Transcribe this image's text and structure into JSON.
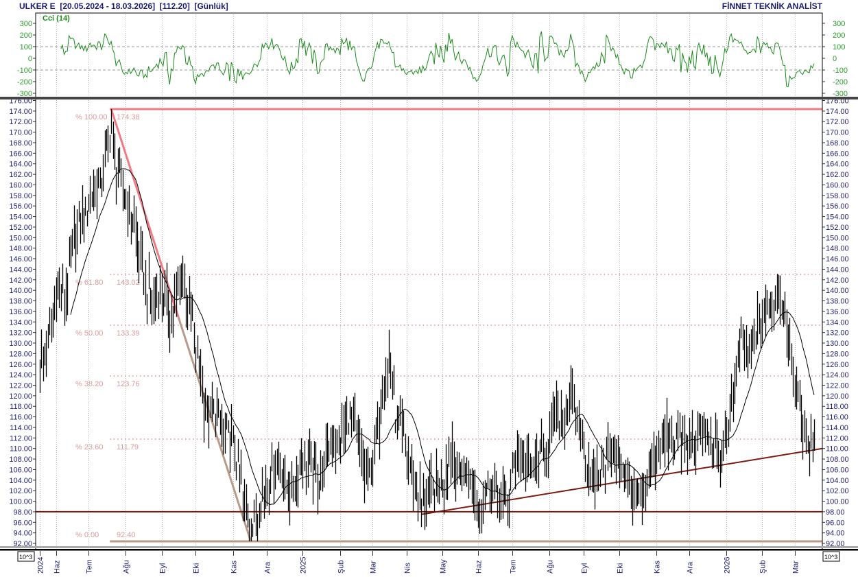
{
  "header": {
    "title": "ULKER E  [20.05.2024 - 18.03.2026]  [112.20]  [Günlük]",
    "brand": "FİNNET TEKNİK ANALİST"
  },
  "chart_data": [
    {
      "type": "line",
      "title": "Cci (14)",
      "ylim": [
        -300,
        300
      ],
      "yticks": [
        "300",
        "200",
        "100",
        "0",
        "-100",
        "-200",
        "-300"
      ],
      "reference_lines": [
        100,
        -100
      ],
      "color": "#1a8a1a",
      "grid": true
    },
    {
      "type": "bar",
      "ohlc_style": "high-low bars",
      "symbol": "ULKER E",
      "period": "Günlük",
      "start_date": "2024-05-20",
      "end_date": "2026-03-18",
      "last_price": 112.2,
      "ylim": [
        92,
        176
      ],
      "ytick_step": 2,
      "scale_badge": "10^3",
      "xticks": [
        "2024",
        "Haz",
        "Tem",
        "Ağu",
        "Eyl",
        "Eki",
        "Kas",
        "Ara",
        "2025",
        "Şub",
        "Mar",
        "Nis",
        "May",
        "Haz",
        "Tem",
        "Ağu",
        "Eyl",
        "Eki",
        "Kas",
        "Ara",
        "2026",
        "Şub",
        "Mar"
      ],
      "moving_average": {
        "color": "#000000"
      },
      "grid": true,
      "close_waypoints": [
        [
          "2024-05-20",
          126
        ],
        [
          "2024-05-27",
          130
        ],
        [
          "2024-06-03",
          140
        ],
        [
          "2024-06-10",
          138
        ],
        [
          "2024-06-14",
          145
        ],
        [
          "2024-06-21",
          152
        ],
        [
          "2024-06-28",
          155
        ],
        [
          "2024-07-03",
          158
        ],
        [
          "2024-07-10",
          160
        ],
        [
          "2024-07-15",
          165
        ],
        [
          "2024-07-19",
          172
        ],
        [
          "2024-07-25",
          162
        ],
        [
          "2024-07-31",
          158
        ],
        [
          "2024-08-05",
          155
        ],
        [
          "2024-08-12",
          148
        ],
        [
          "2024-08-19",
          140
        ],
        [
          "2024-08-26",
          138
        ],
        [
          "2024-09-02",
          140
        ],
        [
          "2024-09-09",
          135
        ],
        [
          "2024-09-16",
          140
        ],
        [
          "2024-09-20",
          143
        ],
        [
          "2024-09-26",
          136
        ],
        [
          "2024-10-03",
          126
        ],
        [
          "2024-10-10",
          116
        ],
        [
          "2024-10-17",
          117
        ],
        [
          "2024-10-24",
          113
        ],
        [
          "2024-10-31",
          112
        ],
        [
          "2024-11-06",
          106
        ],
        [
          "2024-11-12",
          99
        ],
        [
          "2024-11-18",
          94
        ],
        [
          "2024-11-25",
          100
        ],
        [
          "2024-12-02",
          104
        ],
        [
          "2024-12-09",
          108
        ],
        [
          "2024-12-16",
          104
        ],
        [
          "2024-12-23",
          101
        ],
        [
          "2024-12-30",
          108
        ],
        [
          "2025-01-08",
          107
        ],
        [
          "2025-01-15",
          104
        ],
        [
          "2025-01-23",
          110
        ],
        [
          "2025-02-03",
          112
        ],
        [
          "2025-02-10",
          116
        ],
        [
          "2025-02-17",
          112
        ],
        [
          "2025-02-24",
          104
        ],
        [
          "2025-03-03",
          108
        ],
        [
          "2025-03-10",
          120
        ],
        [
          "2025-03-17",
          128
        ],
        [
          "2025-03-21",
          116
        ],
        [
          "2025-03-28",
          112
        ],
        [
          "2025-04-07",
          104
        ],
        [
          "2025-04-14",
          99
        ],
        [
          "2025-04-22",
          102
        ],
        [
          "2025-05-02",
          104
        ],
        [
          "2025-05-09",
          110
        ],
        [
          "2025-05-16",
          104
        ],
        [
          "2025-05-23",
          105
        ],
        [
          "2025-06-02",
          99
        ],
        [
          "2025-06-12",
          104
        ],
        [
          "2025-06-20",
          101
        ],
        [
          "2025-06-27",
          100
        ],
        [
          "2025-07-04",
          110
        ],
        [
          "2025-07-11",
          107
        ],
        [
          "2025-07-21",
          107
        ],
        [
          "2025-07-30",
          110
        ],
        [
          "2025-08-06",
          116
        ],
        [
          "2025-08-13",
          116
        ],
        [
          "2025-08-20",
          119
        ],
        [
          "2025-08-26",
          116
        ],
        [
          "2025-09-02",
          108
        ],
        [
          "2025-09-08",
          103
        ],
        [
          "2025-09-15",
          106
        ],
        [
          "2025-09-22",
          110
        ],
        [
          "2025-09-30",
          108
        ],
        [
          "2025-10-07",
          104
        ],
        [
          "2025-10-14",
          100
        ],
        [
          "2025-10-20",
          99
        ],
        [
          "2025-10-27",
          105
        ],
        [
          "2025-11-04",
          110
        ],
        [
          "2025-11-12",
          113
        ],
        [
          "2025-11-20",
          112
        ],
        [
          "2025-11-28",
          110
        ],
        [
          "2025-12-05",
          112
        ],
        [
          "2025-12-12",
          114
        ],
        [
          "2025-12-19",
          111
        ],
        [
          "2025-12-26",
          108
        ],
        [
          "2026-01-05",
          116
        ],
        [
          "2026-01-09",
          124
        ],
        [
          "2026-01-14",
          132
        ],
        [
          "2026-01-19",
          127
        ],
        [
          "2026-01-23",
          130
        ],
        [
          "2026-01-30",
          134
        ],
        [
          "2026-02-05",
          136
        ],
        [
          "2026-02-11",
          138
        ],
        [
          "2026-02-16",
          140
        ],
        [
          "2026-02-20",
          136
        ],
        [
          "2026-02-25",
          130
        ],
        [
          "2026-03-02",
          122
        ],
        [
          "2026-03-05",
          117
        ],
        [
          "2026-03-10",
          113
        ],
        [
          "2026-03-13",
          110
        ],
        [
          "2026-03-18",
          112.2
        ]
      ],
      "fibonacci": {
        "high": {
          "date": "2024-07-19",
          "value": 174.38
        },
        "low": {
          "date": "2024-11-18",
          "value": 92.4
        },
        "levels": [
          {
            "pct": "% 100.00",
            "value": "174.38",
            "price": 174.38,
            "style": "solid"
          },
          {
            "pct": "% 61.80",
            "value": "143.02",
            "price": 143.02,
            "style": "dotted"
          },
          {
            "pct": "% 50.00",
            "value": "133.39",
            "price": 133.39,
            "style": "dotted"
          },
          {
            "pct": "% 38.20",
            "value": "123.76",
            "price": 123.76,
            "style": "dotted"
          },
          {
            "pct": "% 23.60",
            "value": "111.79",
            "price": 111.79,
            "style": "dotted"
          },
          {
            "pct": "% 0.00",
            "value": "92.40",
            "price": 92.4,
            "style": "solid"
          }
        ],
        "color_upper": "#f07a84",
        "color_lower": "#b89a88"
      },
      "support_line": {
        "value": 98.0,
        "color": "#7a1a10"
      },
      "trend_line": {
        "from": [
          "2025-04-14",
          97.5
        ],
        "to_value_at_end": 110.0,
        "color": "#7a1a10"
      }
    }
  ]
}
